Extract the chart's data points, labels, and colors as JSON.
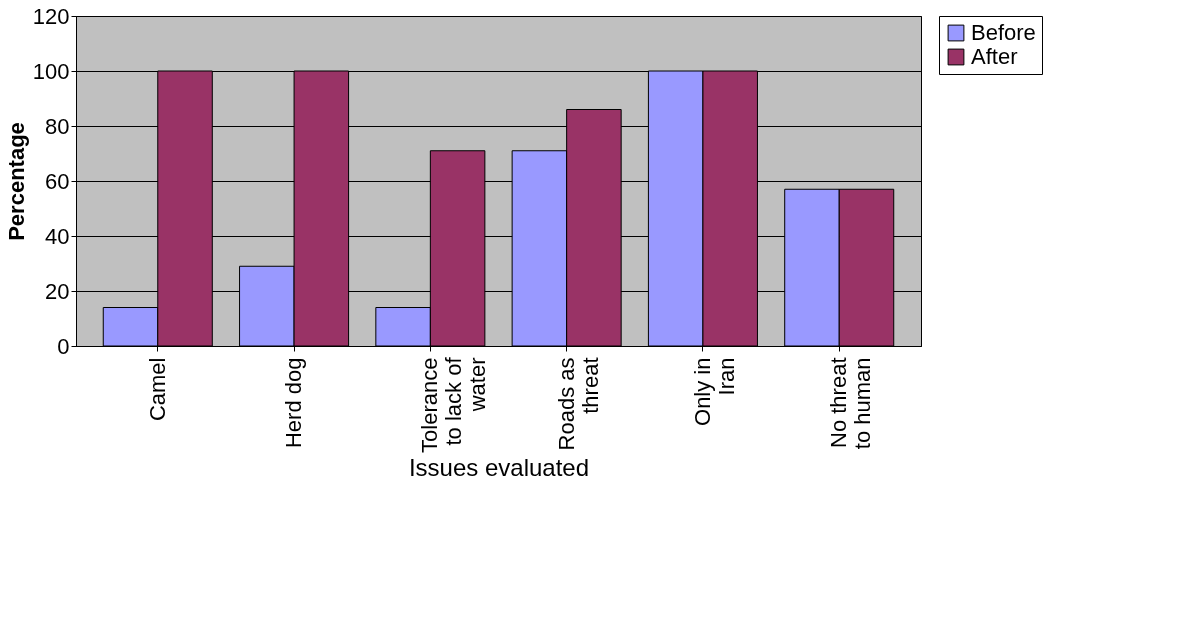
{
  "chart_data": {
    "type": "bar",
    "xlabel": "Issues evaluated",
    "ylabel": "Percentage",
    "categories": [
      "Camel",
      "Herd dog",
      "Tolerance to lack of water",
      "Roads as threat",
      "Only in Iran",
      "No threat to human"
    ],
    "series": [
      {
        "name": "Before",
        "color": "#9999ff",
        "values": [
          14,
          29,
          14,
          71,
          100,
          57
        ]
      },
      {
        "name": "After",
        "color": "#993366",
        "values": [
          100,
          100,
          71,
          86,
          100,
          57
        ]
      }
    ],
    "ylim": [
      0,
      120
    ],
    "yticks": [
      0,
      20,
      40,
      60,
      80,
      100,
      120
    ],
    "grid": "y",
    "legend": "right"
  }
}
